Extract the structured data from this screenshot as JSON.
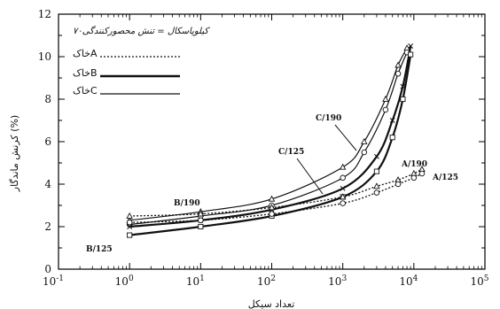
{
  "chart_data": {
    "type": "line",
    "x_scale": "log",
    "xlim": [
      0.1,
      100000
    ],
    "ylim": [
      0,
      12
    ],
    "x_ticks": [
      "10-1",
      "100",
      "101",
      "102",
      "103",
      "104",
      "105"
    ],
    "y_ticks": [
      "0",
      "2",
      "4",
      "6",
      "8",
      "10",
      "12"
    ],
    "xlabel": "تعداد سیکل",
    "ylabel": "کرنش ماندگار (%)",
    "legend": {
      "title": "۷۰کیلوپاسکال = تنش محصورکنندگی",
      "position": "top-left",
      "entries": [
        {
          "label": "خاکA",
          "style": "dotted"
        },
        {
          "label": "خاکB",
          "style": "thick"
        },
        {
          "label": "خاکC",
          "style": "solid"
        }
      ]
    },
    "annotations": [
      "C/190",
      "C/125",
      "B/190",
      "B/125",
      "A/190",
      "A/125"
    ],
    "series": [
      {
        "id": "C190",
        "soil": "C",
        "x": [
          1,
          10,
          100,
          1000,
          2000,
          4000,
          6000,
          8000
        ],
        "y": [
          2.3,
          2.7,
          3.3,
          4.8,
          6.0,
          8.0,
          9.6,
          10.4
        ]
      },
      {
        "id": "C125",
        "soil": "C",
        "x": [
          1,
          10,
          100,
          1000,
          2000,
          4000,
          6000,
          8000
        ],
        "y": [
          2.1,
          2.5,
          3.0,
          4.3,
          5.5,
          7.5,
          9.2,
          10.2
        ]
      },
      {
        "id": "B190",
        "soil": "B",
        "x": [
          1,
          10,
          100,
          1000,
          3000,
          5000,
          7000,
          9000
        ],
        "y": [
          2.0,
          2.3,
          2.8,
          3.8,
          5.3,
          7.0,
          8.6,
          10.5
        ]
      },
      {
        "id": "B125",
        "soil": "B",
        "x": [
          1,
          10,
          100,
          1000,
          3000,
          5000,
          7000,
          9000
        ],
        "y": [
          1.6,
          2.0,
          2.5,
          3.4,
          4.6,
          6.2,
          8.0,
          10.1
        ]
      },
      {
        "id": "A190",
        "soil": "A",
        "x": [
          1,
          10,
          100,
          1000,
          3000,
          6000,
          10000,
          13000
        ],
        "y": [
          2.5,
          2.6,
          2.9,
          3.4,
          3.9,
          4.2,
          4.5,
          4.7
        ]
      },
      {
        "id": "A125",
        "soil": "A",
        "x": [
          1,
          10,
          100,
          1000,
          3000,
          6000,
          10000,
          13000
        ],
        "y": [
          2.2,
          2.3,
          2.6,
          3.1,
          3.6,
          4.0,
          4.3,
          4.5
        ]
      }
    ],
    "colors": {
      "line": "#111111",
      "axis": "#000000"
    }
  }
}
